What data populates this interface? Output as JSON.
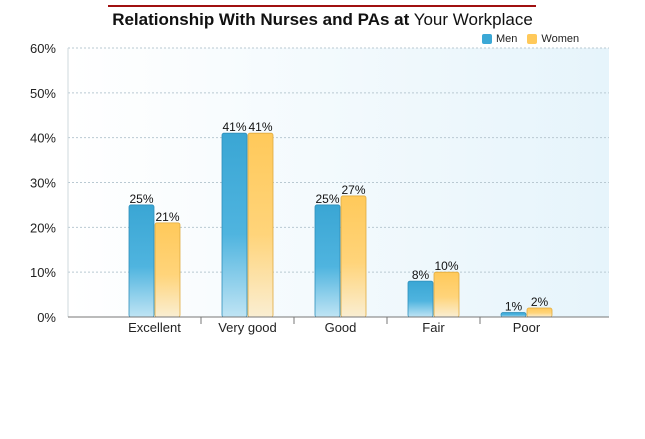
{
  "chart_data": {
    "type": "bar",
    "title_bold": "Relationship With Nurses and PAs at",
    "title_normal": "Your Workplace",
    "categories": [
      "Excellent",
      "Very good",
      "Good",
      "Fair",
      "Poor"
    ],
    "series": [
      {
        "name": "Men",
        "values": [
          25,
          41,
          25,
          8,
          1
        ],
        "labels": [
          "25%",
          "41%",
          "25%",
          "8%",
          "1%"
        ],
        "color": "#3ba8d6"
      },
      {
        "name": "Women",
        "values": [
          21,
          41,
          27,
          10,
          2
        ],
        "labels": [
          "21%",
          "41%",
          "27%",
          "10%",
          "2%"
        ],
        "color": "#ffc95a"
      }
    ],
    "yticks": [
      "0%",
      "10%",
      "20%",
      "30%",
      "40%",
      "50%",
      "60%"
    ],
    "ylim": [
      0,
      60
    ],
    "grid": true,
    "legend_position": "top-right"
  },
  "colors": {
    "title_rule": "#a01010",
    "plot_background": "#eaf6fc",
    "grid": "#b9c9d2"
  }
}
